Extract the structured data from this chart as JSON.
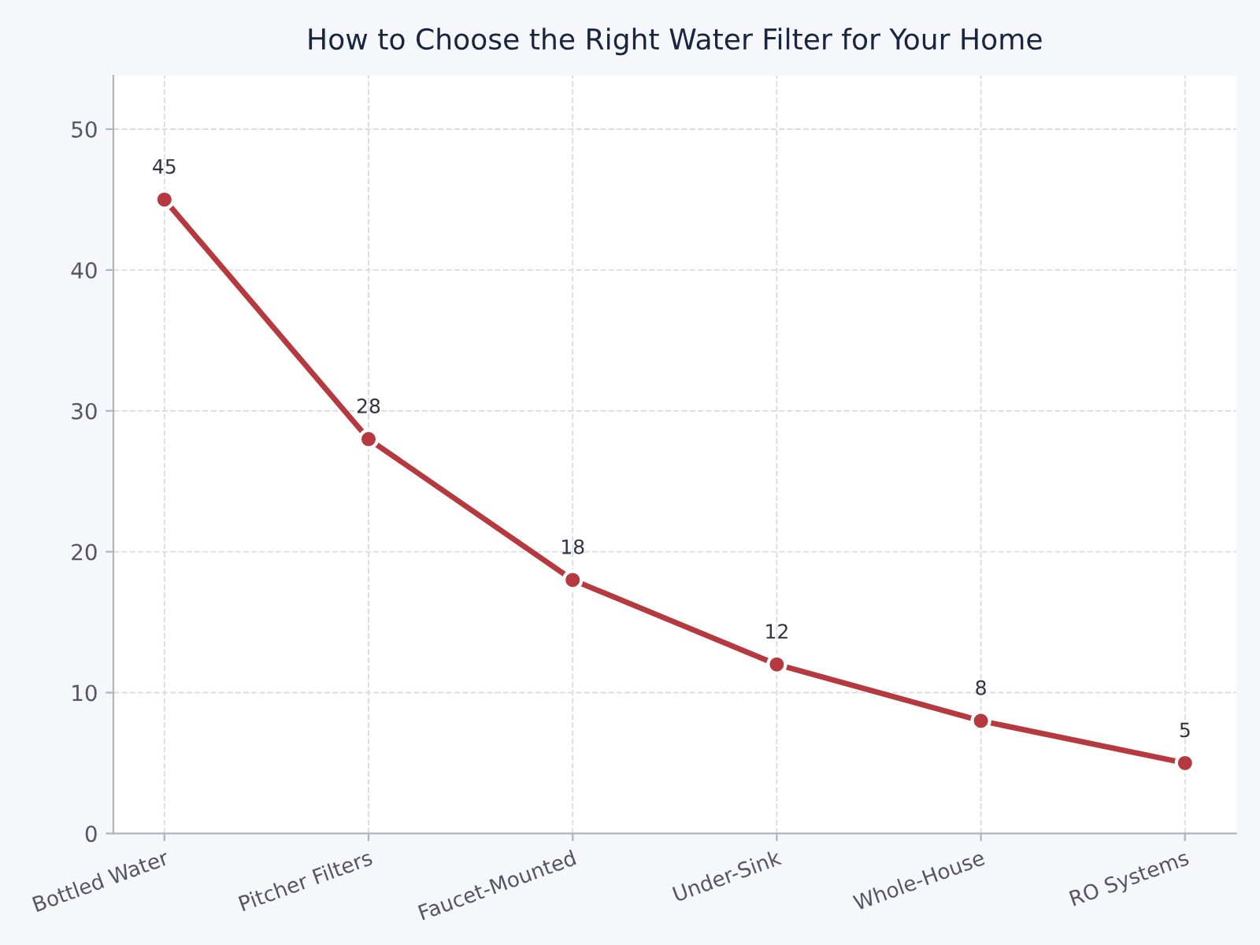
{
  "chart_data": {
    "type": "line",
    "title": "How to Choose the Right Water Filter for Your Home",
    "categories": [
      "Bottled Water",
      "Pitcher Filters",
      "Faucet-Mounted",
      "Under-Sink",
      "Whole-House",
      "RO Systems"
    ],
    "series": [
      {
        "color": "#b5393e",
        "values": [
          45,
          28,
          18,
          12,
          8,
          5
        ]
      }
    ],
    "ylim": [
      0,
      53.8
    ],
    "yticks": [
      0,
      10,
      20,
      30,
      40,
      50
    ],
    "grid": true,
    "marker": "circle",
    "line_style": "solid",
    "data_labels": true
  }
}
